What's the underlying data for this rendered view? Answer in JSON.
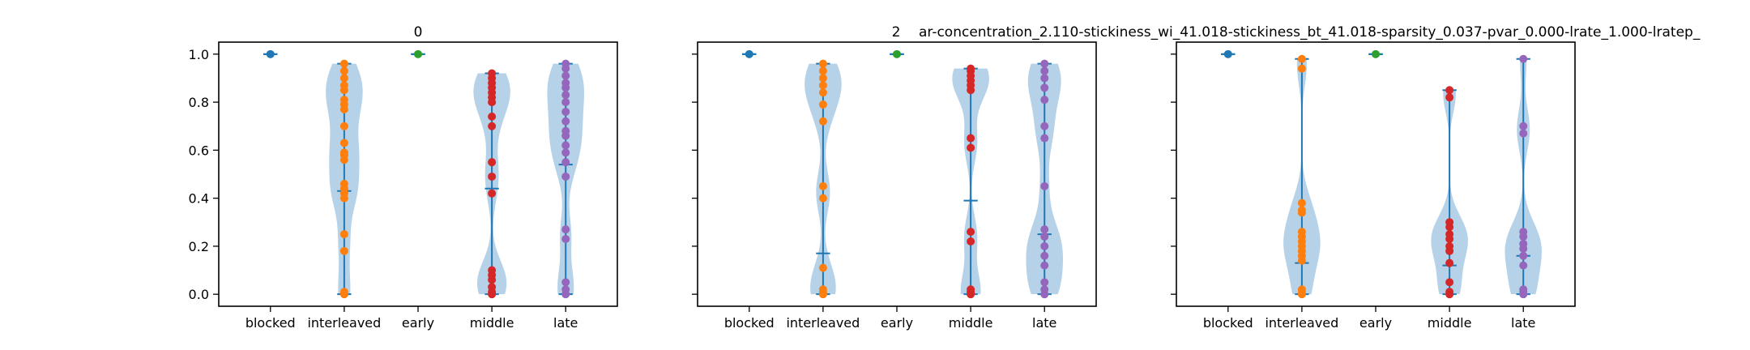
{
  "figure": {
    "subplot_titles": [
      "0",
      "",
      "2"
    ],
    "suptitle": "ar-concentration_2.110-stickiness_wi_41.018-stickiness_bt_41.018-sparsity_0.037-pvar_0.000-lrate_1.000-lratep_"
  },
  "colors": {
    "violin_fill": "#9ec3e1",
    "violin_line": "#1f77b4",
    "blocked": "#1f77b4",
    "interleaved": "#ff7f0e",
    "early": "#2ca02c",
    "middle": "#d62728",
    "late": "#9467bd"
  },
  "chart_data": [
    {
      "type": "violin",
      "title": "0",
      "categories": [
        "blocked",
        "interleaved",
        "early",
        "middle",
        "late"
      ],
      "yticks": [
        "0.0",
        "0.2",
        "0.4",
        "0.6",
        "0.8",
        "1.0"
      ],
      "ylim": [
        -0.05,
        1.05
      ],
      "series": [
        {
          "category": "blocked",
          "min": 1.0,
          "max": 1.0,
          "median": 1.0,
          "points": [
            1.0
          ]
        },
        {
          "category": "interleaved",
          "min": 0.0,
          "max": 0.96,
          "median": 0.43,
          "points": [
            0.0,
            0.01,
            0.18,
            0.25,
            0.4,
            0.42,
            0.44,
            0.46,
            0.56,
            0.58,
            0.59,
            0.63,
            0.7,
            0.77,
            0.79,
            0.81,
            0.85,
            0.87,
            0.9,
            0.93,
            0.96
          ]
        },
        {
          "category": "early",
          "min": 1.0,
          "max": 1.0,
          "median": 1.0,
          "points": [
            1.0
          ]
        },
        {
          "category": "middle",
          "min": 0.0,
          "max": 0.92,
          "median": 0.44,
          "points": [
            0.0,
            0.01,
            0.03,
            0.06,
            0.08,
            0.1,
            0.42,
            0.49,
            0.55,
            0.7,
            0.74,
            0.8,
            0.82,
            0.84,
            0.86,
            0.88,
            0.9,
            0.92
          ]
        },
        {
          "category": "late",
          "min": 0.0,
          "max": 0.96,
          "median": 0.54,
          "points": [
            0.0,
            0.02,
            0.05,
            0.23,
            0.27,
            0.49,
            0.55,
            0.59,
            0.62,
            0.66,
            0.68,
            0.72,
            0.76,
            0.8,
            0.83,
            0.86,
            0.88,
            0.91,
            0.94,
            0.96
          ]
        }
      ]
    },
    {
      "type": "violin",
      "title": "",
      "categories": [
        "blocked",
        "interleaved",
        "early",
        "middle",
        "late"
      ],
      "yticks": [
        "0.0",
        "0.2",
        "0.4",
        "0.6",
        "0.8",
        "1.0"
      ],
      "ylim": [
        -0.05,
        1.05
      ],
      "series": [
        {
          "category": "blocked",
          "min": 1.0,
          "max": 1.0,
          "median": 1.0,
          "points": [
            1.0
          ]
        },
        {
          "category": "interleaved",
          "min": 0.0,
          "max": 0.96,
          "median": 0.17,
          "points": [
            0.0,
            0.01,
            0.02,
            0.11,
            0.4,
            0.45,
            0.72,
            0.79,
            0.84,
            0.87,
            0.9,
            0.93,
            0.96
          ]
        },
        {
          "category": "early",
          "min": 1.0,
          "max": 1.0,
          "median": 1.0,
          "points": [
            1.0
          ]
        },
        {
          "category": "middle",
          "min": 0.0,
          "max": 0.94,
          "median": 0.39,
          "points": [
            0.0,
            0.01,
            0.02,
            0.22,
            0.26,
            0.61,
            0.65,
            0.85,
            0.87,
            0.89,
            0.91,
            0.93,
            0.94
          ]
        },
        {
          "category": "late",
          "min": 0.0,
          "max": 0.96,
          "median": 0.25,
          "points": [
            0.0,
            0.02,
            0.05,
            0.12,
            0.16,
            0.2,
            0.24,
            0.27,
            0.45,
            0.65,
            0.7,
            0.81,
            0.86,
            0.9,
            0.93,
            0.96
          ]
        }
      ]
    },
    {
      "type": "violin",
      "title": "2",
      "categories": [
        "blocked",
        "interleaved",
        "early",
        "middle",
        "late"
      ],
      "yticks": [
        "0.0",
        "0.2",
        "0.4",
        "0.6",
        "0.8",
        "1.0"
      ],
      "ylim": [
        -0.05,
        1.05
      ],
      "series": [
        {
          "category": "blocked",
          "min": 1.0,
          "max": 1.0,
          "median": 1.0,
          "points": [
            1.0
          ]
        },
        {
          "category": "interleaved",
          "min": 0.0,
          "max": 0.98,
          "median": 0.13,
          "points": [
            0.0,
            0.01,
            0.02,
            0.14,
            0.16,
            0.18,
            0.2,
            0.22,
            0.24,
            0.26,
            0.34,
            0.35,
            0.38,
            0.94,
            0.98
          ]
        },
        {
          "category": "early",
          "min": 1.0,
          "max": 1.0,
          "median": 1.0,
          "points": [
            1.0
          ]
        },
        {
          "category": "middle",
          "min": 0.0,
          "max": 0.85,
          "median": 0.12,
          "points": [
            0.0,
            0.01,
            0.05,
            0.13,
            0.18,
            0.2,
            0.23,
            0.25,
            0.28,
            0.3,
            0.82,
            0.85
          ]
        },
        {
          "category": "late",
          "min": 0.0,
          "max": 0.98,
          "median": 0.16,
          "points": [
            0.0,
            0.01,
            0.02,
            0.12,
            0.16,
            0.19,
            0.21,
            0.24,
            0.26,
            0.67,
            0.7,
            0.98
          ]
        }
      ]
    }
  ]
}
